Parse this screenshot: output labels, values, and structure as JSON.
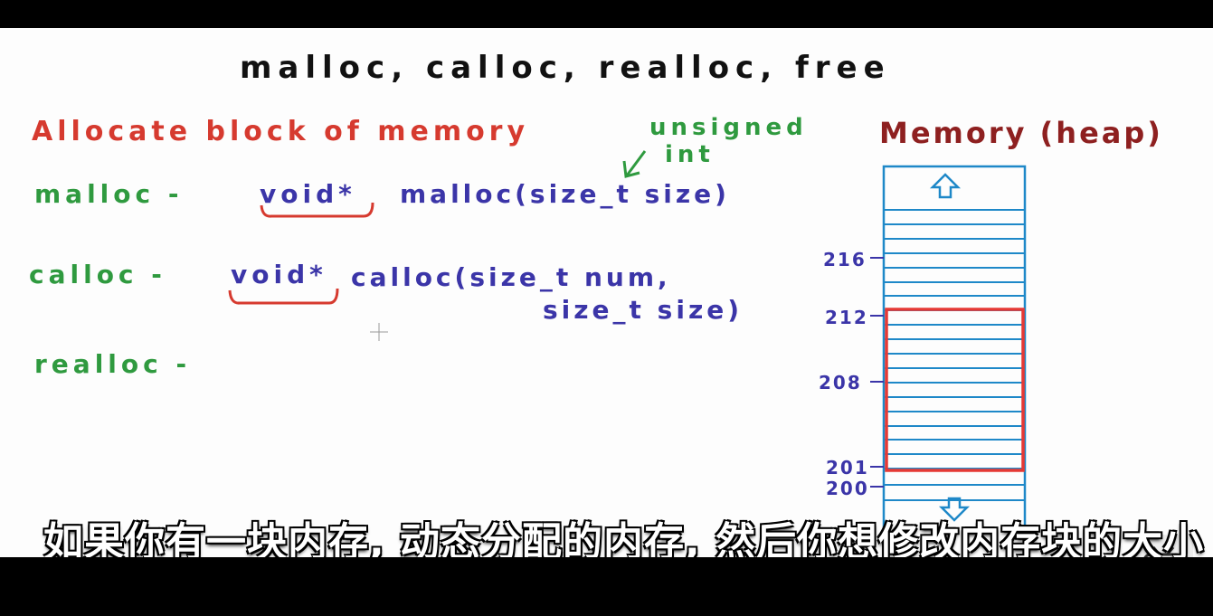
{
  "board": {
    "title": "malloc, calloc, realloc, free",
    "heading": "Allocate block of memory",
    "malloc": {
      "label": "malloc -",
      "return_type": "void*",
      "signature": "malloc(size_t size)"
    },
    "annotation": {
      "line1": "unsigned",
      "line2": "int"
    },
    "calloc": {
      "label": "calloc -",
      "return_type": "void*",
      "signature_line1": "calloc(size_t num,",
      "signature_line2": "size_t size)"
    },
    "realloc": {
      "label": "realloc -"
    },
    "memory": {
      "label": "Memory (heap)",
      "addresses": [
        "216",
        "212",
        "208",
        "201",
        "200"
      ]
    }
  },
  "colors": {
    "title": "#111111",
    "heading": "#d63a2f",
    "function_name": "#2f9a3f",
    "code": "#3b35a8",
    "memory_label": "#8e2020",
    "memory_box": "#1e88c8",
    "highlight": "#e53935"
  },
  "icons": [
    "up-arrow-icon",
    "down-arrow-icon",
    "cursor-icon",
    "bilibili-logo-icon"
  ],
  "subtitle": "如果你有一块内存, 动态分配的内存, 然后你想修改内存块的大小"
}
